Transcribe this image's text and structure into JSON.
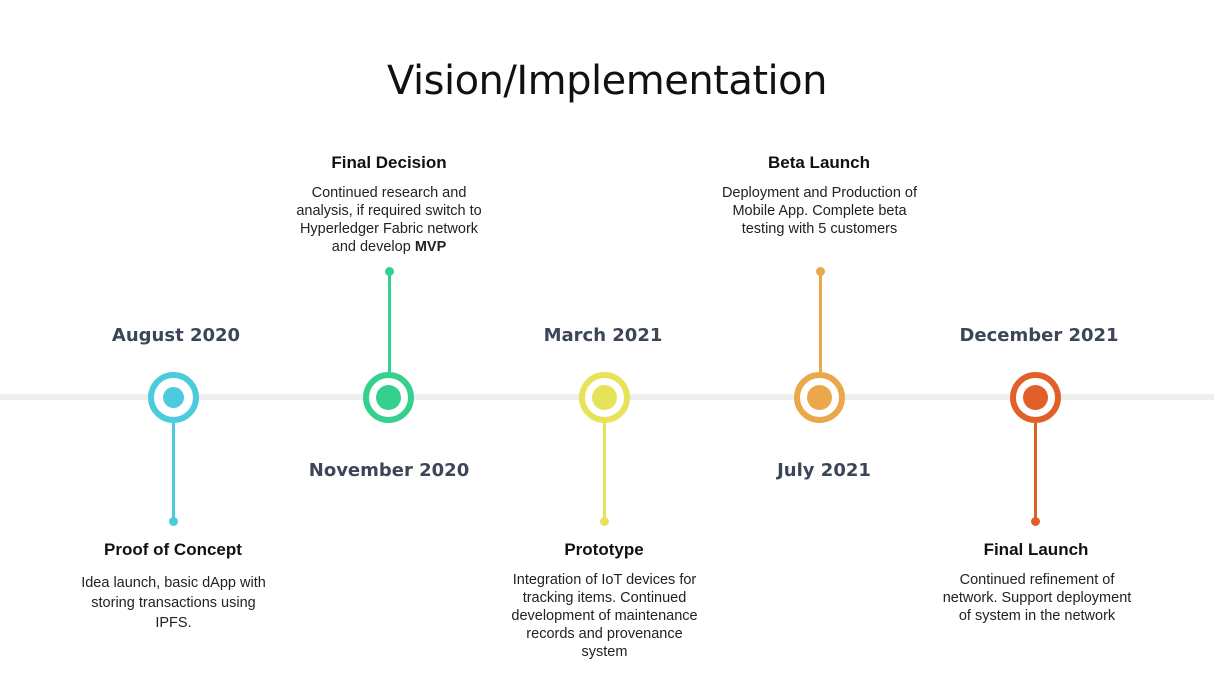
{
  "title": "Vision/Implementation",
  "milestones": [
    {
      "date": "August 2020",
      "heading": "Proof of Concept",
      "description": "Idea launch, basic dApp with storing transactions using IPFS.",
      "color": "#4ccbdf"
    },
    {
      "date": "November 2020",
      "heading": "Final Decision",
      "description": "Continued research and analysis, if required switch to Hyperledger Fabric network and develop",
      "description_bold": "MVP",
      "color": "#35d08e"
    },
    {
      "date": "March 2021",
      "heading": "Prototype",
      "description": "Integration of IoT devices for tracking items. Continued development of maintenance records and provenance system",
      "color": "#e6e25a"
    },
    {
      "date": "July 2021",
      "heading": "Beta Launch",
      "description": "Deployment and Production of Mobile App. Complete beta testing with 5 customers",
      "color": "#eaa84a"
    },
    {
      "date": "December 2021",
      "heading": "Final Launch",
      "description": "Continued refinement of network. Support deployment of system in the network",
      "color": "#e1602a"
    }
  ]
}
